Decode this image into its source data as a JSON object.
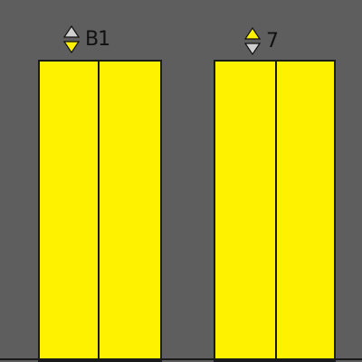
{
  "elevators": [
    {
      "floor": "B1",
      "up_color": "#d0d0d0",
      "down_color": "#fff200"
    },
    {
      "floor": "7",
      "up_color": "#fff200",
      "down_color": "#d0d0d0"
    }
  ],
  "colors": {
    "background": "#5e5e5e",
    "door": "#fff200",
    "outline": "#1a1a1a"
  }
}
